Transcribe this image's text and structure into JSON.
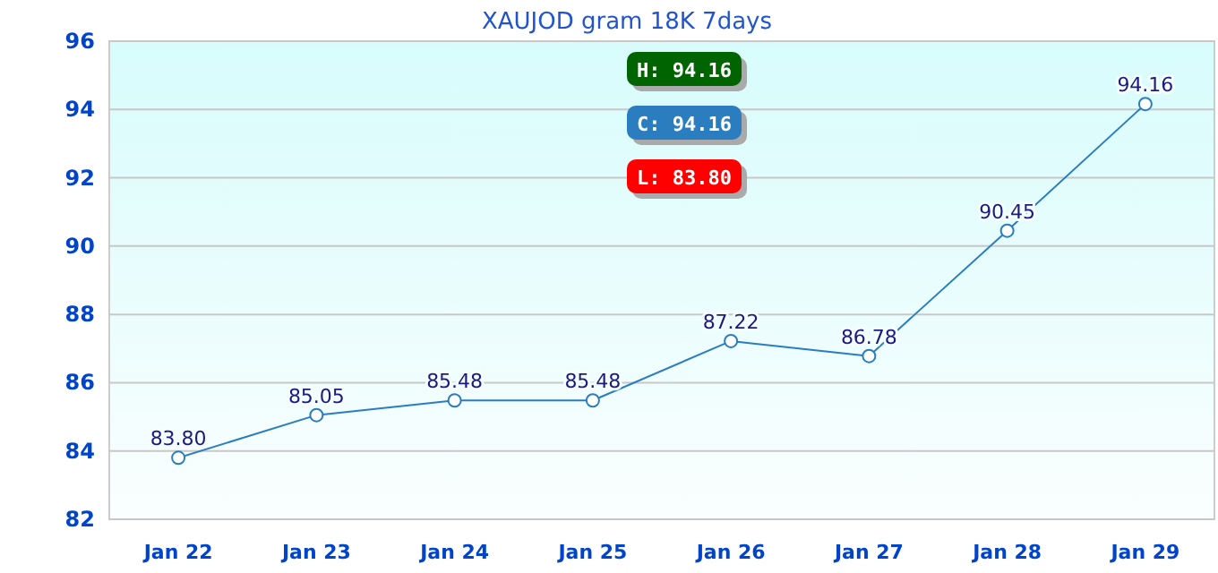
{
  "chart_data": {
    "type": "line",
    "title": "XAUJOD gram 18K 7days",
    "categories": [
      "Jan 22",
      "Jan 23",
      "Jan 24",
      "Jan 25",
      "Jan 26",
      "Jan 27",
      "Jan 28",
      "Jan 29"
    ],
    "series": [
      {
        "color": "#2a7dbf",
        "values": [
          83.8,
          85.05,
          85.48,
          85.48,
          87.22,
          86.78,
          90.45,
          94.16
        ],
        "value_labels": [
          "83.80",
          "85.05",
          "85.48",
          "85.48",
          "87.22",
          "86.78",
          "90.45",
          "94.16"
        ]
      }
    ],
    "ylim": [
      82,
      96
    ],
    "yticks": [
      82,
      84,
      86,
      88,
      90,
      92,
      94,
      96
    ],
    "grid": "y",
    "marker": "circle",
    "annotations": [
      "H: 94.16",
      "C: 94.16",
      "L: 83.80"
    ]
  }
}
